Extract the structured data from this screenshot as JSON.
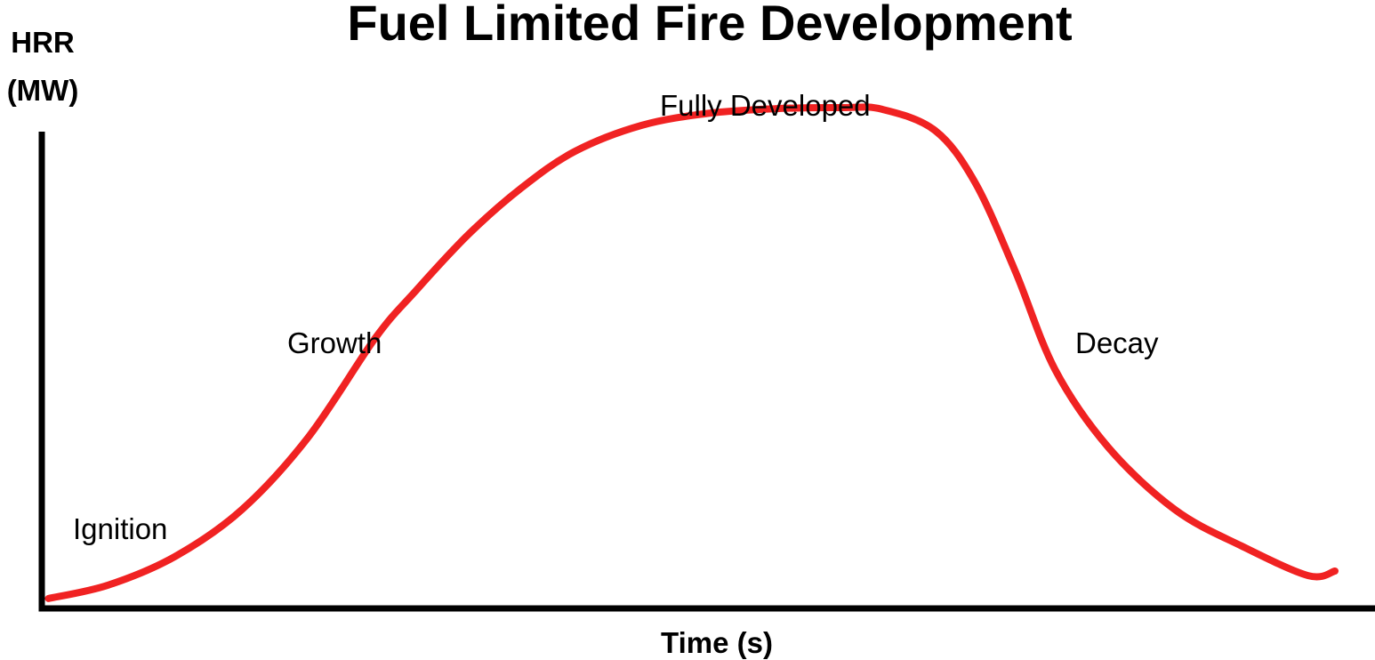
{
  "chart_data": {
    "type": "line",
    "title": "Fuel Limited Fire Development",
    "xlabel": "Time (s)",
    "ylabel": "HRR (MW)",
    "ylabel_lines": [
      "HRR",
      "(MW)"
    ],
    "grid": false,
    "legend": "none",
    "xlim": [
      0,
      100
    ],
    "ylim": [
      0,
      100
    ],
    "series": [
      {
        "color": "#f02222",
        "x": [
          0.5,
          5,
          10,
          15,
          20,
          25,
          28,
          32,
          36,
          40,
          45,
          50,
          55,
          60,
          63,
          67,
          70,
          73,
          76,
          80,
          85,
          90,
          95,
          97
        ],
        "y": [
          1.9,
          4.5,
          10,
          19,
          33,
          52,
          61,
          72,
          81,
          88,
          93,
          95.3,
          96.2,
          96.4,
          96.1,
          92,
          82,
          65,
          46,
          31,
          19,
          12,
          6.3,
          7.2
        ]
      }
    ],
    "annotations": [
      {
        "id": "ignition",
        "text": "Ignition"
      },
      {
        "id": "growth",
        "text": "Growth"
      },
      {
        "id": "fully_developed",
        "text": "Fully Developed"
      },
      {
        "id": "decay",
        "text": "Decay"
      }
    ]
  }
}
